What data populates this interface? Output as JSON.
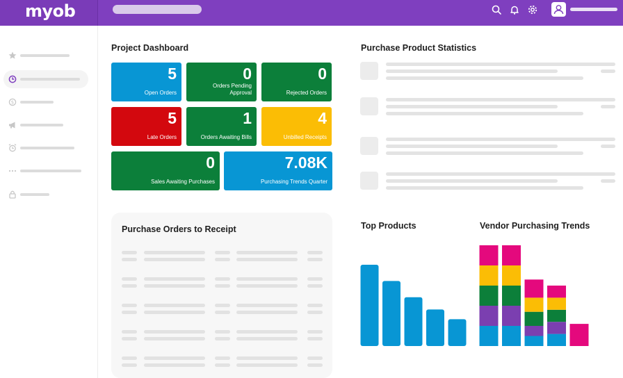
{
  "app": {
    "logo_text": "myob",
    "brand_color": "#7f3fbf"
  },
  "header": {
    "icons": [
      "search-icon",
      "bell-icon",
      "gear-icon",
      "user-icon"
    ]
  },
  "sidebar": {
    "items": [
      {
        "icon": "star-icon",
        "active": false
      },
      {
        "icon": "clock-icon",
        "active": true
      },
      {
        "icon": "dollar-icon",
        "active": false
      },
      {
        "icon": "megaphone-icon",
        "active": false
      },
      {
        "icon": "alarm-icon",
        "active": false
      },
      {
        "icon": "more-icon",
        "active": false
      },
      {
        "icon": "lock-icon",
        "active": false
      }
    ]
  },
  "dashboard": {
    "title": "Project Dashboard",
    "tiles": [
      {
        "value": "5",
        "label": "Open Orders",
        "color": "#0896d4"
      },
      {
        "value": "0",
        "label": "Orders Pending Approval",
        "color": "#0c7f3a"
      },
      {
        "value": "0",
        "label": "Rejected Orders",
        "color": "#0c7f3a"
      },
      {
        "value": "5",
        "label": "Late Orders",
        "color": "#d3080e"
      },
      {
        "value": "1",
        "label": "Orders Awaiting Bills",
        "color": "#0c7f3a"
      },
      {
        "value": "4",
        "label": "Unbilled Receipts",
        "color": "#fbbd05"
      },
      {
        "value": "0",
        "label": "Sales Awaiting Purchases",
        "color": "#0c7f3a"
      },
      {
        "value": "7.08K",
        "label": "Purchasing Trends Quarter",
        "color": "#0896d4"
      }
    ]
  },
  "stats": {
    "title": "Purchase Product Statistics"
  },
  "receipt": {
    "title": "Purchase  Orders to Receipt"
  },
  "chart_data": [
    {
      "type": "bar",
      "title": "Top Products",
      "categories": [
        "",
        "",
        "",
        "",
        ""
      ],
      "values": [
        100,
        80,
        60,
        45,
        33
      ],
      "colors": [
        "#0896d4"
      ]
    },
    {
      "type": "bar",
      "title": "Vendor Purchasing Trends",
      "stacked": true,
      "categories": [
        "",
        "",
        "",
        "",
        ""
      ],
      "series": [
        {
          "color": "#0896d4",
          "values": [
            1,
            1,
            0.5,
            0.6,
            0
          ]
        },
        {
          "color": "#7b3fb0",
          "values": [
            1,
            1,
            0.5,
            0.6,
            0
          ]
        },
        {
          "color": "#0c7f3a",
          "values": [
            1,
            1,
            0.7,
            0.6,
            0
          ]
        },
        {
          "color": "#fbbd05",
          "values": [
            1,
            1,
            0.7,
            0.6,
            0
          ]
        },
        {
          "color": "#e4097d",
          "values": [
            1,
            1,
            0.9,
            0.6,
            1.1
          ]
        }
      ]
    }
  ]
}
